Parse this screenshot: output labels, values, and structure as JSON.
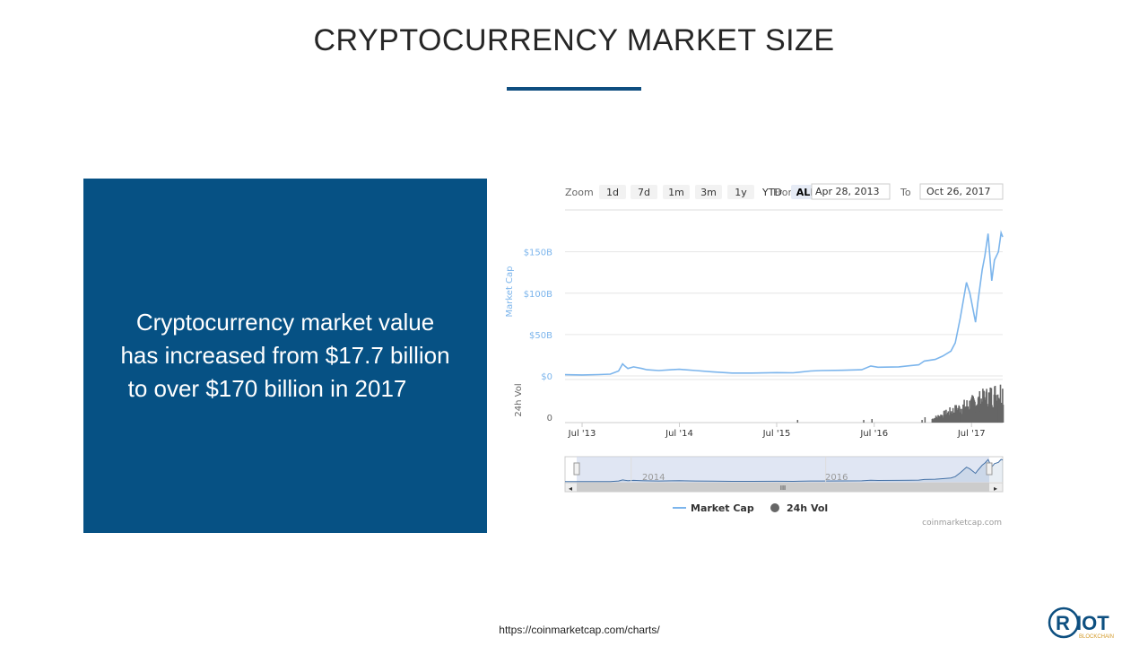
{
  "slide": {
    "title": "CRYPTOCURRENCY MARKET SIZE",
    "body_lines": [
      "Cryptocurrency market value",
      "has increased from $17.7 billion",
      "to over $170 billion in 2017"
    ],
    "source_url": "https://coinmarketcap.com/charts/",
    "colors": {
      "accent": "#065184",
      "rule": "#0f4e80",
      "text": "#262626"
    }
  },
  "logo": {
    "text": "RIOT",
    "subtext": "BLOCKCHAIN",
    "primary_color": "#0d4f80",
    "secondary_color": "#d39a2a"
  },
  "chart_controls": {
    "zoom_label": "Zoom",
    "zoom_buttons": [
      "1d",
      "7d",
      "1m",
      "3m",
      "1y",
      "YTD",
      "ALL"
    ],
    "active_zoom": "ALL",
    "from_label": "From",
    "from_value": "Apr 28, 2013",
    "to_label": "To",
    "to_value": "Oct 26, 2017"
  },
  "chart_data": {
    "type": "line",
    "ylabel": "Market Cap",
    "y2label": "24h Vol",
    "yticks": [
      "$150B",
      "$100B",
      "$50B",
      "$0"
    ],
    "ylim": [
      0,
      180
    ],
    "y_unit": "billion USD",
    "xticks": [
      "Jul '13",
      "Jul '14",
      "Jul '15",
      "Jul '16",
      "Jul '17"
    ],
    "xlim": [
      "2013-04-28",
      "2017-10-26"
    ],
    "vol_ytick": "0",
    "series": [
      {
        "name": "Market Cap",
        "color": "#7cb5ec",
        "points": [
          [
            "2013-04-28",
            1.5
          ],
          [
            "2013-07-01",
            1.2
          ],
          [
            "2013-09-01",
            1.6
          ],
          [
            "2013-10-15",
            2.2
          ],
          [
            "2013-11-15",
            6.0
          ],
          [
            "2013-11-30",
            14.5
          ],
          [
            "2013-12-08",
            12.0
          ],
          [
            "2013-12-20",
            9.0
          ],
          [
            "2014-01-10",
            11.0
          ],
          [
            "2014-02-10",
            9.0
          ],
          [
            "2014-03-01",
            7.5
          ],
          [
            "2014-04-15",
            6.5
          ],
          [
            "2014-06-01",
            7.5
          ],
          [
            "2014-07-01",
            8.0
          ],
          [
            "2014-09-01",
            6.5
          ],
          [
            "2014-11-01",
            5.0
          ],
          [
            "2015-01-15",
            3.5
          ],
          [
            "2015-04-01",
            3.5
          ],
          [
            "2015-07-01",
            4.0
          ],
          [
            "2015-09-01",
            3.8
          ],
          [
            "2015-11-05",
            6.0
          ],
          [
            "2015-12-15",
            6.5
          ],
          [
            "2016-03-01",
            6.8
          ],
          [
            "2016-05-15",
            7.5
          ],
          [
            "2016-06-18",
            12.0
          ],
          [
            "2016-07-15",
            10.5
          ],
          [
            "2016-10-01",
            11.0
          ],
          [
            "2016-12-15",
            13.5
          ],
          [
            "2017-01-05",
            18.0
          ],
          [
            "2017-02-15",
            20.0
          ],
          [
            "2017-03-15",
            24.0
          ],
          [
            "2017-04-15",
            30.0
          ],
          [
            "2017-05-01",
            40.0
          ],
          [
            "2017-05-20",
            70.0
          ],
          [
            "2017-06-12",
            113.0
          ],
          [
            "2017-06-25",
            100.0
          ],
          [
            "2017-07-16",
            65.0
          ],
          [
            "2017-07-25",
            90.0
          ],
          [
            "2017-08-10",
            128.0
          ],
          [
            "2017-08-20",
            145.0
          ],
          [
            "2017-09-01",
            172.0
          ],
          [
            "2017-09-15",
            115.0
          ],
          [
            "2017-09-25",
            140.0
          ],
          [
            "2017-10-10",
            150.0
          ],
          [
            "2017-10-20",
            173.0
          ],
          [
            "2017-10-26",
            168.0
          ]
        ]
      }
    ],
    "vol_series": {
      "name": "24h Vol",
      "color": "#666666"
    },
    "navigator": {
      "labels": [
        "2014",
        "2016"
      ]
    },
    "legend": {
      "position": "bottom",
      "items": [
        "Market Cap",
        "24h Vol"
      ]
    },
    "credit": "coinmarketcap.com"
  }
}
